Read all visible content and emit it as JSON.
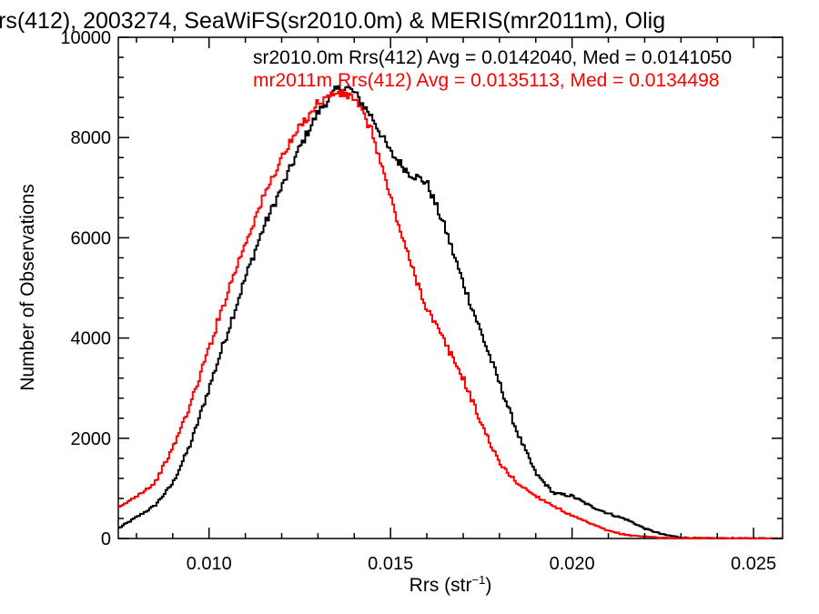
{
  "chart_data": {
    "type": "line",
    "title": "rs(412), 2003274, SeaWiFS(sr2010.0m) & MERIS(mr2011m), Olig",
    "xlabel": "Rrs (str",
    "xlabel_sup": "−1",
    "xlabel_close": ")",
    "ylabel": "Number of Observations",
    "xlim": [
      0.0075,
      0.0258
    ],
    "ylim": [
      0,
      10000
    ],
    "xticks": [
      {
        "value": 0.01,
        "label": "0.010"
      },
      {
        "value": 0.015,
        "label": "0.015"
      },
      {
        "value": 0.02,
        "label": "0.020"
      },
      {
        "value": 0.025,
        "label": "0.025"
      }
    ],
    "yticks": [
      {
        "value": 0,
        "label": "0"
      },
      {
        "value": 2000,
        "label": "2000"
      },
      {
        "value": 4000,
        "label": "4000"
      },
      {
        "value": 6000,
        "label": "6000"
      },
      {
        "value": 8000,
        "label": "8000"
      },
      {
        "value": 10000,
        "label": "10000"
      }
    ],
    "step": "histogram",
    "annotations": [
      {
        "text": "sr2010.0m Rrs(412) Avg = 0.0142040, Med = 0.0141050",
        "color": "#000000"
      },
      {
        "text": "mr2011m Rrs(412) Avg = 0.0135113, Med = 0.0134498",
        "color": "#ff0000"
      }
    ],
    "series": [
      {
        "color": "#000000",
        "points": [
          [
            0.0075,
            200
          ],
          [
            0.0085,
            650
          ],
          [
            0.009,
            1100
          ],
          [
            0.0095,
            1900
          ],
          [
            0.01,
            3000
          ],
          [
            0.0105,
            4100
          ],
          [
            0.011,
            5200
          ],
          [
            0.0115,
            6200
          ],
          [
            0.012,
            7000
          ],
          [
            0.0125,
            7800
          ],
          [
            0.013,
            8500
          ],
          [
            0.0135,
            8950
          ],
          [
            0.0138,
            9000
          ],
          [
            0.014,
            8900
          ],
          [
            0.0145,
            8400
          ],
          [
            0.015,
            7700
          ],
          [
            0.0155,
            7300
          ],
          [
            0.016,
            7100
          ],
          [
            0.0165,
            6200
          ],
          [
            0.017,
            5100
          ],
          [
            0.0175,
            4100
          ],
          [
            0.018,
            3100
          ],
          [
            0.0185,
            2100
          ],
          [
            0.019,
            1300
          ],
          [
            0.0195,
            900
          ],
          [
            0.02,
            850
          ],
          [
            0.0205,
            650
          ],
          [
            0.021,
            500
          ],
          [
            0.0215,
            380
          ],
          [
            0.022,
            200
          ],
          [
            0.0225,
            80
          ],
          [
            0.023,
            20
          ],
          [
            0.0235,
            5
          ],
          [
            0.0258,
            0
          ]
        ]
      },
      {
        "color": "#ff0000",
        "points": [
          [
            0.0075,
            600
          ],
          [
            0.0085,
            1100
          ],
          [
            0.009,
            1800
          ],
          [
            0.0095,
            2700
          ],
          [
            0.01,
            3800
          ],
          [
            0.0105,
            4900
          ],
          [
            0.011,
            5900
          ],
          [
            0.0115,
            6800
          ],
          [
            0.012,
            7600
          ],
          [
            0.0125,
            8200
          ],
          [
            0.013,
            8700
          ],
          [
            0.0135,
            8900
          ],
          [
            0.014,
            8800
          ],
          [
            0.0145,
            8100
          ],
          [
            0.015,
            6800
          ],
          [
            0.0155,
            5600
          ],
          [
            0.016,
            4600
          ],
          [
            0.0165,
            3900
          ],
          [
            0.017,
            3200
          ],
          [
            0.0175,
            2300
          ],
          [
            0.018,
            1500
          ],
          [
            0.0185,
            1100
          ],
          [
            0.019,
            850
          ],
          [
            0.0195,
            650
          ],
          [
            0.02,
            450
          ],
          [
            0.0205,
            300
          ],
          [
            0.021,
            150
          ],
          [
            0.0215,
            70
          ],
          [
            0.022,
            40
          ],
          [
            0.0225,
            15
          ],
          [
            0.023,
            5
          ],
          [
            0.0258,
            0
          ]
        ]
      }
    ]
  }
}
